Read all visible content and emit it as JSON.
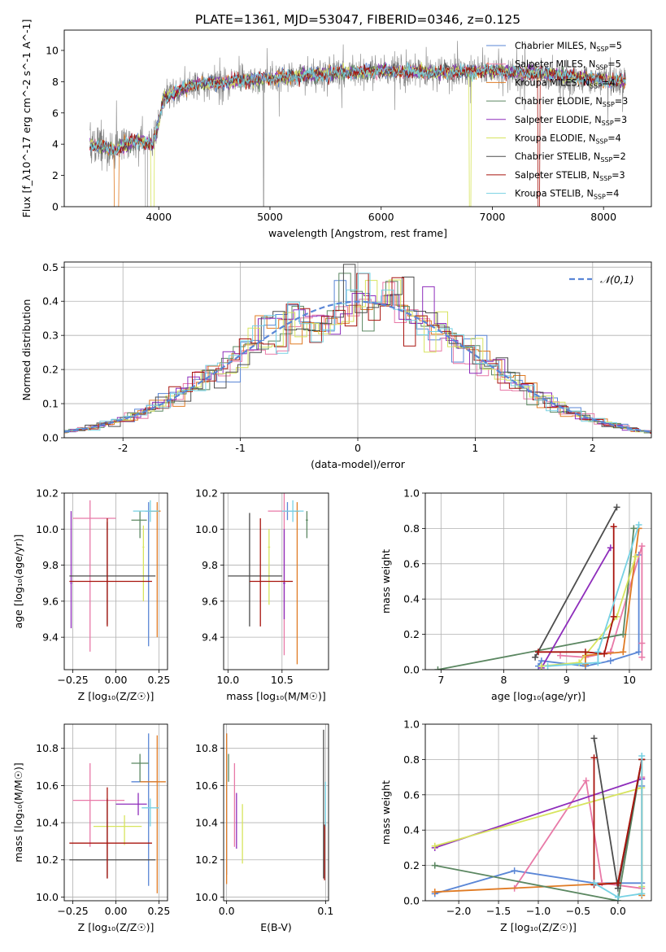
{
  "title": "PLATE=1361, MJD=53047, FIBERID=0346, z=0.125",
  "colors": {
    "Chabrier MILES": "#5a86d6",
    "Salpeter MILES": "#e879a7",
    "Kroupa MILES": "#e07b24",
    "Chabrier ELODIE": "#5b8761",
    "Salpeter ELODIE": "#8e2dbb",
    "Kroupa ELODIE": "#d7e45e",
    "Chabrier STELIB": "#4d4d4d",
    "Salpeter STELIB": "#a8140e",
    "Kroupa STELIB": "#76d1e3"
  },
  "legend_order": [
    "Chabrier MILES",
    "Salpeter MILES",
    "Kroupa MILES",
    "Chabrier ELODIE",
    "Salpeter ELODIE",
    "Kroupa ELODIE",
    "Chabrier STELIB",
    "Salpeter STELIB",
    "Kroupa STELIB"
  ],
  "legend_nssp": [
    5,
    5,
    4,
    3,
    3,
    4,
    2,
    3,
    4
  ],
  "chart_data": [
    {
      "id": "spectrum",
      "type": "line",
      "xlabel": "wavelength [Angstrom, rest frame]",
      "ylabel": "Flux [f_λ10^-17 erg cm^-2 s^-1 A^-1]",
      "xlim": [
        3150,
        8430
      ],
      "ylim": [
        0,
        11.3
      ],
      "xticks": [
        4000,
        5000,
        6000,
        7000,
        8000
      ],
      "yticks": [
        0,
        2,
        4,
        6,
        8,
        10
      ],
      "data_range": [
        3380,
        8200
      ],
      "continuum_points": [
        [
          3380,
          4.0
        ],
        [
          3600,
          3.6
        ],
        [
          3800,
          4.3
        ],
        [
          3950,
          4.0
        ],
        [
          4050,
          7.0
        ],
        [
          4300,
          7.8
        ],
        [
          4600,
          8.0
        ],
        [
          5000,
          8.2
        ],
        [
          5500,
          8.5
        ],
        [
          6000,
          8.7
        ],
        [
          6500,
          8.6
        ],
        [
          7000,
          8.7
        ],
        [
          7500,
          8.5
        ],
        [
          8000,
          8.1
        ],
        [
          8200,
          8.0
        ]
      ]
    },
    {
      "id": "residuals",
      "type": "histogram",
      "xlabel": "(data-model)/error",
      "ylabel": "Normed distribution",
      "xlim": [
        -2.5,
        2.5
      ],
      "ylim": [
        0,
        0.515
      ],
      "xticks": [
        -2,
        -1,
        0,
        1,
        2
      ],
      "yticks": [
        0.0,
        0.1,
        0.2,
        0.3,
        0.4,
        0.5
      ],
      "reference_label": "𝒩(0,1)",
      "bin_width": 0.1
    },
    {
      "id": "age_vs_Z",
      "type": "errorbar",
      "xlabel": "Z [log₁₀(Z/Z☉)]",
      "ylabel": "age  [log₁₀(age/yr)]",
      "xlim": [
        -0.3,
        0.3
      ],
      "ylim": [
        9.22,
        10.2
      ],
      "xticks": [
        -0.25,
        0.0,
        0.25
      ],
      "xticklabels": [
        "−0.25",
        "0.00",
        "0.25"
      ],
      "yticks": [
        9.4,
        9.6,
        9.8,
        10.0,
        10.2
      ],
      "points": [
        {
          "m": "Chabrier MILES",
          "x": 0.19,
          "y": 10.1,
          "xl": 0.02,
          "xh": 0.05,
          "yl": 0.75,
          "yh": 0.05
        },
        {
          "m": "Salpeter MILES",
          "x": -0.15,
          "y": 10.06,
          "xl": 0.1,
          "xh": 0.15,
          "yl": 0.74,
          "yh": 0.1
        },
        {
          "m": "Kroupa MILES",
          "x": 0.24,
          "y": 10.1,
          "xl": 0.05,
          "xh": 0.02,
          "yl": 0.7,
          "yh": 0.05
        },
        {
          "m": "Chabrier ELODIE",
          "x": 0.14,
          "y": 10.05,
          "xl": 0.05,
          "xh": 0.04,
          "yl": 0.1,
          "yh": 0.05
        },
        {
          "m": "Salpeter ELODIE",
          "x": -0.26,
          "y": 9.7,
          "xl": 0.005,
          "xh": 0.005,
          "yl": 0.25,
          "yh": 0.4
        },
        {
          "m": "Kroupa ELODIE",
          "x": 0.16,
          "y": 9.9,
          "xl": 0.005,
          "xh": 0.005,
          "yl": 0.3,
          "yh": 0.12
        },
        {
          "m": "Chabrier STELIB",
          "x": -0.05,
          "y": 9.74,
          "xl": 0.22,
          "xh": 0.28,
          "yl": 0.27,
          "yh": 0.3
        },
        {
          "m": "Salpeter STELIB",
          "x": -0.05,
          "y": 9.71,
          "xl": 0.22,
          "xh": 0.26,
          "yl": 0.25,
          "yh": 0.35
        },
        {
          "m": "Kroupa STELIB",
          "x": 0.2,
          "y": 10.1,
          "xl": 0.1,
          "xh": 0.05,
          "yl": 0.06,
          "yh": 0.06
        }
      ]
    },
    {
      "id": "age_vs_mass",
      "type": "errorbar",
      "xlabel": "mass [log₁₀(M/M☉)]",
      "ylabel": "",
      "xlim": [
        9.96,
        10.93
      ],
      "ylim": [
        9.22,
        10.2
      ],
      "xticks": [
        10.0,
        10.5
      ],
      "xticklabels": [
        "10.0",
        "10.5"
      ],
      "yticks": [
        9.4,
        9.6,
        9.8,
        10.0,
        10.2
      ],
      "points": [
        {
          "m": "Chabrier MILES",
          "x": 10.55,
          "y": 10.1,
          "xl": 0.05,
          "xh": 0.1,
          "yl": 0.05,
          "yh": 0.05
        },
        {
          "m": "Salpeter MILES",
          "x": 10.52,
          "y": 10.1,
          "xl": 0.15,
          "xh": 0.05,
          "yl": 0.8,
          "yh": 0.1
        },
        {
          "m": "Kroupa MILES",
          "x": 10.64,
          "y": 10.1,
          "xl": 0.02,
          "xh": 0.02,
          "yl": 0.85,
          "yh": 0.05
        },
        {
          "m": "Chabrier ELODIE",
          "x": 10.73,
          "y": 10.05,
          "xl": 0.01,
          "xh": 0.01,
          "yl": 0.1,
          "yh": 0.05
        },
        {
          "m": "Salpeter ELODIE",
          "x": 10.52,
          "y": 9.7,
          "xl": 0.01,
          "xh": 0.01,
          "yl": 0.2,
          "yh": 0.3
        },
        {
          "m": "Kroupa ELODIE",
          "x": 10.38,
          "y": 9.9,
          "xl": 0.01,
          "xh": 0.01,
          "yl": 0.32,
          "yh": 0.1
        },
        {
          "m": "Chabrier STELIB",
          "x": 10.2,
          "y": 9.74,
          "xl": 0.2,
          "xh": 0.3,
          "yl": 0.28,
          "yh": 0.35
        },
        {
          "m": "Salpeter STELIB",
          "x": 10.3,
          "y": 9.71,
          "xl": 0.1,
          "xh": 0.3,
          "yl": 0.25,
          "yh": 0.35
        },
        {
          "m": "Kroupa STELIB",
          "x": 10.6,
          "y": 10.1,
          "xl": 0.1,
          "xh": 0.1,
          "yl": 0.06,
          "yh": 0.06
        }
      ]
    },
    {
      "id": "weight_vs_age",
      "type": "line",
      "xlabel": "age  [log₁₀(age/yr)]",
      "ylabel": "mass weight",
      "xlim": [
        6.75,
        10.35
      ],
      "ylim": [
        0,
        1.0
      ],
      "xticks": [
        7,
        8,
        9,
        10
      ],
      "yticks": [
        0.0,
        0.2,
        0.4,
        0.6,
        0.8,
        1.0
      ],
      "series": [
        {
          "name": "Chabrier MILES",
          "x": [
            8.55,
            8.6,
            9.3,
            9.7,
            10.15,
            10.15
          ],
          "y": [
            0.02,
            0.05,
            0.02,
            0.05,
            0.1,
            0.65
          ]
        },
        {
          "name": "Salpeter MILES",
          "x": [
            8.9,
            9.3,
            9.7,
            10.2,
            10.2,
            10.2
          ],
          "y": [
            0.08,
            0.07,
            0.1,
            0.7,
            0.07,
            0.15
          ]
        },
        {
          "name": "Kroupa MILES",
          "x": [
            9.3,
            9.3,
            9.9,
            10.15
          ],
          "y": [
            0.03,
            0.08,
            0.1,
            0.8
          ]
        },
        {
          "name": "Chabrier ELODIE",
          "x": [
            6.95,
            9.9,
            10.07
          ],
          "y": [
            0.0,
            0.2,
            0.8
          ]
        },
        {
          "name": "Salpeter ELODIE",
          "x": [
            8.6,
            9.7
          ],
          "y": [
            0.01,
            0.69
          ]
        },
        {
          "name": "Kroupa ELODIE",
          "x": [
            8.6,
            9.2,
            9.8,
            10.1
          ],
          "y": [
            0.02,
            0.04,
            0.3,
            0.64
          ]
        },
        {
          "name": "Chabrier STELIB",
          "x": [
            8.5,
            9.8
          ],
          "y": [
            0.07,
            0.92
          ]
        },
        {
          "name": "Salpeter STELIB",
          "x": [
            8.55,
            9.3,
            9.6,
            9.75,
            9.75
          ],
          "y": [
            0.1,
            0.1,
            0.09,
            0.3,
            0.81
          ]
        },
        {
          "name": "Kroupa STELIB",
          "x": [
            8.7,
            9.5,
            9.5,
            10.15
          ],
          "y": [
            0.02,
            0.04,
            0.1,
            0.82
          ]
        }
      ]
    },
    {
      "id": "mass_vs_Z",
      "type": "errorbar",
      "xlabel": "Z [log₁₀(Z/Z☉)]",
      "ylabel": "mass [log₁₀(M/M☉)]",
      "xlim": [
        -0.3,
        0.3
      ],
      "ylim": [
        9.98,
        10.93
      ],
      "xticks": [
        -0.25,
        0.0,
        0.25
      ],
      "xticklabels": [
        "−0.25",
        "0.00",
        "0.25"
      ],
      "yticks": [
        10.0,
        10.2,
        10.4,
        10.6,
        10.8
      ],
      "points": [
        {
          "m": "Chabrier MILES",
          "x": 0.19,
          "y": 10.62,
          "xl": 0.1,
          "xh": 0.05,
          "yl": 0.56,
          "yh": 0.26
        },
        {
          "m": "Salpeter MILES",
          "x": -0.15,
          "y": 10.52,
          "xl": 0.1,
          "xh": 0.2,
          "yl": 0.25,
          "yh": 0.2
        },
        {
          "m": "Kroupa MILES",
          "x": 0.24,
          "y": 10.62,
          "xl": 0.1,
          "xh": 0.05,
          "yl": 0.6,
          "yh": 0.25
        },
        {
          "m": "Chabrier ELODIE",
          "x": 0.14,
          "y": 10.72,
          "xl": 0.05,
          "xh": 0.05,
          "yl": 0.1,
          "yh": 0.05
        },
        {
          "m": "Salpeter ELODIE",
          "x": 0.13,
          "y": 10.5,
          "xl": 0.13,
          "xh": 0.05,
          "yl": 0.06,
          "yh": 0.06
        },
        {
          "m": "Kroupa ELODIE",
          "x": 0.05,
          "y": 10.38,
          "xl": 0.18,
          "xh": 0.1,
          "yl": 0.1,
          "yh": 0.06
        },
        {
          "m": "Chabrier STELIB",
          "x": -0.05,
          "y": 10.2,
          "xl": 0.22,
          "xh": 0.28,
          "yl": 0.1,
          "yh": 0.33
        },
        {
          "m": "Salpeter STELIB",
          "x": -0.05,
          "y": 10.29,
          "xl": 0.22,
          "xh": 0.26,
          "yl": 0.19,
          "yh": 0.3
        },
        {
          "m": "Kroupa STELIB",
          "x": 0.2,
          "y": 10.48,
          "xl": 0.05,
          "xh": 0.05,
          "yl": 0.1,
          "yh": 0.05
        }
      ]
    },
    {
      "id": "mass_vs_ebv",
      "type": "errorbar",
      "xlabel": "E(B-V)",
      "ylabel": "",
      "xlim": [
        -0.003,
        0.103
      ],
      "ylim": [
        9.98,
        10.93
      ],
      "xticks": [
        0.0,
        0.1
      ],
      "xticklabels": [
        "0.0",
        "0.1"
      ],
      "yticks": [
        10.0,
        10.2,
        10.4,
        10.6,
        10.8
      ],
      "points": [
        {
          "m": "Chabrier MILES",
          "x": 0.0,
          "y": 10.62,
          "xl": 0,
          "xh": 0,
          "yl": 0.5,
          "yh": 0.26
        },
        {
          "m": "Salpeter MILES",
          "x": 0.008,
          "y": 10.52,
          "xl": 0,
          "xh": 0,
          "yl": 0.25,
          "yh": 0.2
        },
        {
          "m": "Kroupa MILES",
          "x": 0.0,
          "y": 10.62,
          "xl": 0,
          "xh": 0,
          "yl": 0.55,
          "yh": 0.26
        },
        {
          "m": "Chabrier ELODIE",
          "x": 0.002,
          "y": 10.72,
          "xl": 0,
          "xh": 0,
          "yl": 0.1,
          "yh": 0.05
        },
        {
          "m": "Salpeter ELODIE",
          "x": 0.01,
          "y": 10.5,
          "xl": 0,
          "xh": 0,
          "yl": 0.24,
          "yh": 0.06
        },
        {
          "m": "Kroupa ELODIE",
          "x": 0.016,
          "y": 10.38,
          "xl": 0,
          "xh": 0,
          "yl": 0.2,
          "yh": 0.12
        },
        {
          "m": "Chabrier STELIB",
          "x": 0.098,
          "y": 10.6,
          "xl": 0,
          "xh": 0,
          "yl": 0.5,
          "yh": 0.3
        },
        {
          "m": "Salpeter STELIB",
          "x": 0.099,
          "y": 10.29,
          "xl": 0,
          "xh": 0,
          "yl": 0.2,
          "yh": 0.1
        },
        {
          "m": "Kroupa STELIB",
          "x": 0.1,
          "y": 10.48,
          "xl": 0,
          "xh": 0,
          "yl": 0.1,
          "yh": 0.14
        }
      ]
    },
    {
      "id": "weight_vs_Z",
      "type": "line",
      "xlabel": "Z [log₁₀(Z/Z☉)]",
      "ylabel": "mass weight",
      "xlim": [
        -2.42,
        0.42
      ],
      "ylim": [
        0,
        1.0
      ],
      "xticks": [
        -2.0,
        -1.5,
        -1.0,
        -0.5,
        0.0
      ],
      "xticklabels": [
        "−2.0",
        "−1.5",
        "−1.0",
        "−0.5",
        "0.0"
      ],
      "yticks": [
        0.0,
        0.2,
        0.4,
        0.6,
        0.8,
        1.0
      ],
      "series": [
        {
          "name": "Chabrier MILES",
          "x": [
            -2.3,
            -1.3,
            -0.3,
            0.3,
            0.3
          ],
          "y": [
            0.04,
            0.17,
            0.1,
            0.1,
            0.65
          ]
        },
        {
          "name": "Salpeter MILES",
          "x": [
            -1.3,
            -0.4,
            -0.2,
            0.3,
            0.3
          ],
          "y": [
            0.07,
            0.68,
            0.1,
            0.07,
            0.7
          ]
        },
        {
          "name": "Kroupa MILES",
          "x": [
            -2.3,
            0.0,
            0.3,
            0.3
          ],
          "y": [
            0.05,
            0.1,
            0.8,
            0.03
          ]
        },
        {
          "name": "Chabrier ELODIE",
          "x": [
            -2.3,
            0.0,
            0.3
          ],
          "y": [
            0.2,
            0.0,
            0.8
          ]
        },
        {
          "name": "Salpeter ELODIE",
          "x": [
            -2.3,
            0.3
          ],
          "y": [
            0.3,
            0.69
          ]
        },
        {
          "name": "Kroupa ELODIE",
          "x": [
            -2.3,
            0.3,
            0.3,
            0.3
          ],
          "y": [
            0.31,
            0.64,
            0.04,
            0.08
          ]
        },
        {
          "name": "Chabrier STELIB",
          "x": [
            -0.3,
            0.0,
            0.3
          ],
          "y": [
            0.92,
            0.07,
            0.8
          ]
        },
        {
          "name": "Salpeter STELIB",
          "x": [
            -0.3,
            -0.3,
            0.0,
            0.3
          ],
          "y": [
            0.81,
            0.09,
            0.1,
            0.8
          ]
        },
        {
          "name": "Kroupa STELIB",
          "x": [
            -0.3,
            0.0,
            0.3,
            0.3
          ],
          "y": [
            0.1,
            0.02,
            0.04,
            0.82
          ]
        }
      ]
    }
  ]
}
